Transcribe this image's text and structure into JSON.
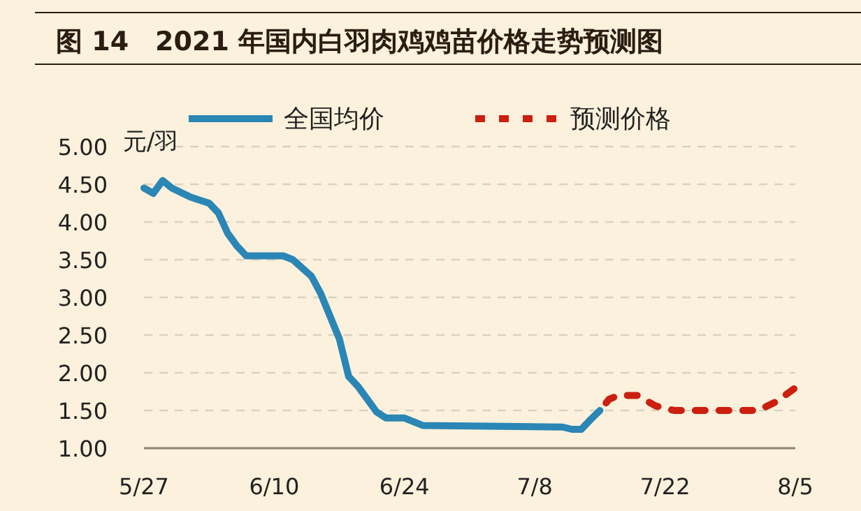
{
  "chart_data": {
    "type": "line",
    "title": "图 14　2021 年国内白羽肉鸡鸡苗价格走势预测图",
    "ylabel": "元/羽",
    "xlim": [
      "2021-05-27",
      "2021-08-05"
    ],
    "xticks": [
      {
        "value": "2021-05-27",
        "label": "5/27"
      },
      {
        "value": "2021-06-10",
        "label": "6/10"
      },
      {
        "value": "2021-06-24",
        "label": "6/24"
      },
      {
        "value": "2021-07-08",
        "label": "7/8"
      },
      {
        "value": "2021-07-22",
        "label": "7/22"
      },
      {
        "value": "2021-08-05",
        "label": "8/5"
      }
    ],
    "ylim": [
      1,
      5
    ],
    "yticks": [
      {
        "value": 1,
        "label": "1.00"
      },
      {
        "value": 1.5,
        "label": "1.50"
      },
      {
        "value": 2,
        "label": "2.00"
      },
      {
        "value": 2.5,
        "label": "2.50"
      },
      {
        "value": 3,
        "label": "3.00"
      },
      {
        "value": 3.5,
        "label": "3.50"
      },
      {
        "value": 4,
        "label": "4.00"
      },
      {
        "value": 4.5,
        "label": "4.50"
      },
      {
        "value": 5,
        "label": "5.00"
      }
    ],
    "grid": "y",
    "legend": "top",
    "marker": "none",
    "series": [
      {
        "name": "全国均价",
        "color": "#2a86b5",
        "line_style": "solid",
        "x": [
          "2021-05-27",
          "2021-05-28",
          "2021-05-29",
          "2021-05-30",
          "2021-06-01",
          "2021-06-02",
          "2021-06-03",
          "2021-06-04",
          "2021-06-05",
          "2021-06-06",
          "2021-06-07",
          "2021-06-11",
          "2021-06-12",
          "2021-06-14",
          "2021-06-15",
          "2021-06-16",
          "2021-06-17",
          "2021-06-18",
          "2021-06-19",
          "2021-06-21",
          "2021-06-22",
          "2021-06-24",
          "2021-06-26",
          "2021-07-11",
          "2021-07-12",
          "2021-07-13",
          "2021-07-14",
          "2021-07-15"
        ],
        "values": [
          4.45,
          4.38,
          4.55,
          4.45,
          4.33,
          4.29,
          4.25,
          4.12,
          3.85,
          3.68,
          3.55,
          3.55,
          3.5,
          3.28,
          3.05,
          2.75,
          2.45,
          1.95,
          1.82,
          1.48,
          1.4,
          1.4,
          1.3,
          1.28,
          1.25,
          1.25,
          1.38,
          1.5
        ]
      },
      {
        "name": "预测价格",
        "color": "#cc1f10",
        "line_style": "dashed",
        "x": [
          "2021-07-15",
          "2021-07-16",
          "2021-07-17",
          "2021-07-19",
          "2021-07-21",
          "2021-07-23",
          "2021-08-01",
          "2021-08-03",
          "2021-08-05"
        ],
        "values": [
          1.5,
          1.65,
          1.7,
          1.7,
          1.56,
          1.5,
          1.5,
          1.62,
          1.8
        ]
      }
    ]
  }
}
